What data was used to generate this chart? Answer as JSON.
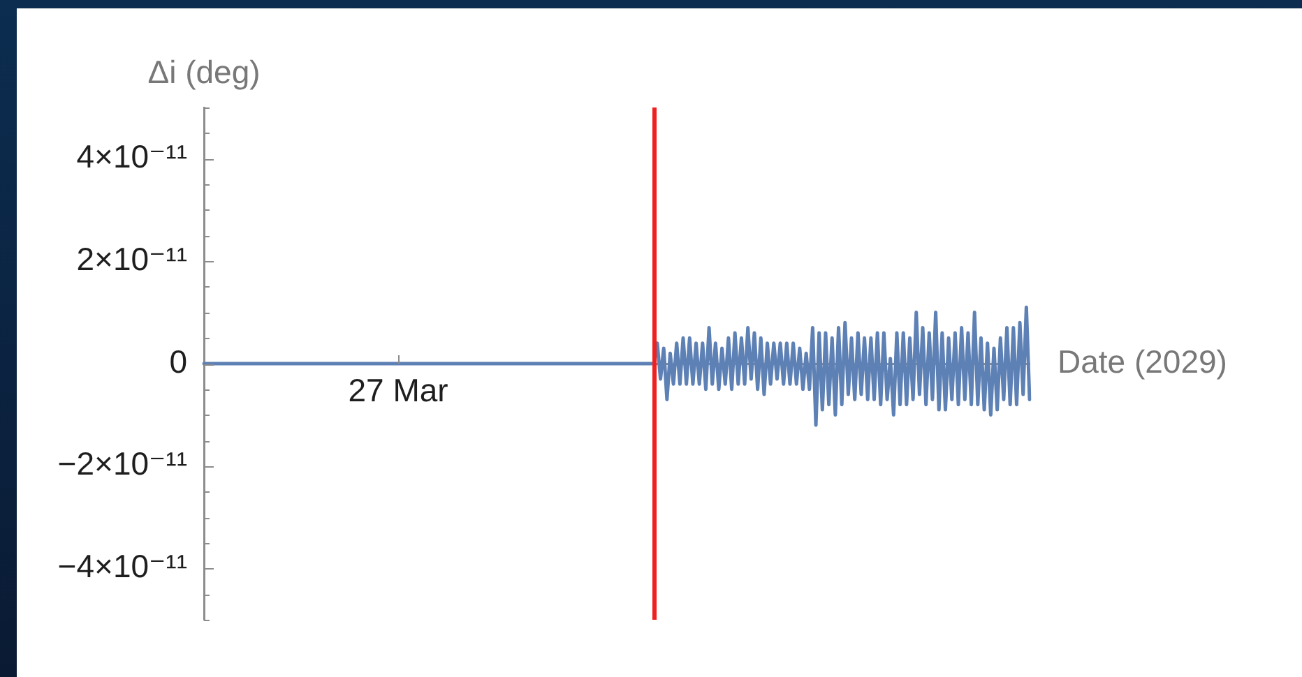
{
  "chart_data": {
    "type": "line",
    "xlabel": "Date (2029)",
    "ylabel": "Δi (deg)",
    "categories": [
      null,
      null,
      null,
      null,
      null,
      null,
      null,
      null,
      null,
      null,
      null,
      null,
      null,
      null,
      null,
      null,
      null,
      null,
      null,
      null,
      null,
      null,
      null,
      null,
      null,
      null,
      null,
      null,
      null,
      null,
      null,
      null,
      null,
      null,
      null,
      null,
      null,
      null,
      null,
      null,
      null,
      null,
      null,
      null,
      null,
      null,
      null,
      null,
      null,
      null,
      null,
      null,
      null,
      null,
      null,
      null,
      null,
      null,
      null,
      null,
      "27 Mar",
      null,
      null,
      null,
      null,
      null,
      null,
      null,
      null,
      null,
      null,
      null,
      null,
      null,
      null,
      null,
      null,
      null,
      null,
      null,
      null,
      null,
      null,
      null,
      null,
      null,
      null,
      null,
      null,
      null,
      null,
      null,
      null,
      null,
      null,
      null,
      null,
      null,
      null,
      null,
      null,
      null,
      null,
      null,
      null,
      null,
      null,
      null,
      null,
      null,
      null,
      null,
      null,
      null,
      null,
      null,
      null,
      null,
      null,
      null,
      null,
      null,
      null,
      null,
      null,
      null,
      null,
      null,
      null,
      null,
      null,
      null,
      null,
      null,
      null,
      null,
      null,
      null,
      null,
      null,
      null,
      null,
      null,
      null,
      null,
      null,
      null,
      null,
      null,
      null,
      null,
      null,
      null,
      null,
      null,
      null,
      null,
      null,
      null,
      null,
      null,
      null,
      null,
      null,
      null,
      null,
      null,
      null,
      null,
      null,
      null,
      null,
      null,
      null,
      null,
      null,
      null,
      null,
      null,
      null,
      null,
      null,
      null,
      null,
      null,
      null,
      null,
      null,
      null,
      null,
      null,
      null,
      null,
      null,
      null,
      null,
      null,
      null,
      null,
      null,
      null,
      null,
      null,
      null,
      null,
      null,
      null,
      null,
      null,
      null,
      null,
      null,
      null,
      null,
      null,
      null,
      null,
      null,
      null,
      null,
      null,
      null,
      null,
      null,
      null,
      null,
      null,
      null,
      null,
      null,
      null,
      null,
      null,
      null,
      null,
      null,
      null,
      null,
      null,
      null,
      null,
      null,
      null,
      null,
      null,
      null,
      null,
      null,
      null,
      null,
      null,
      null,
      null,
      null,
      null,
      null
    ],
    "color": "#5e81b5",
    "values": [
      0,
      0,
      0,
      0,
      0,
      0,
      0,
      0,
      0,
      0,
      0,
      0,
      0,
      0,
      0,
      0,
      0,
      0,
      0,
      0,
      0,
      0,
      0,
      0,
      0,
      0,
      0,
      0,
      0,
      0,
      0,
      0,
      0,
      0,
      0,
      0,
      0,
      0,
      0,
      0,
      0,
      0,
      0,
      0,
      0,
      0,
      0,
      0,
      0,
      0,
      0,
      0,
      0,
      0,
      0,
      0,
      0,
      0,
      0,
      0,
      0,
      0,
      0,
      0,
      0,
      0,
      0,
      0,
      0,
      0,
      0,
      0,
      0,
      0,
      0,
      0,
      0,
      0,
      0,
      0,
      0,
      0,
      0,
      0,
      0,
      0,
      0,
      0,
      0,
      0,
      0,
      0,
      0,
      0,
      0,
      0,
      0,
      0,
      0,
      0,
      0,
      0,
      0,
      0,
      0,
      0,
      0,
      0,
      0,
      0,
      0,
      0,
      0,
      0,
      0,
      0,
      0,
      0,
      0,
      0,
      0,
      0,
      0,
      0,
      0,
      0,
      0,
      0,
      0,
      0,
      0,
      0,
      0,
      0,
      0,
      0,
      0,
      0,
      0,
      0,
      4e-12,
      -3e-12,
      3e-12,
      -7e-12,
      2e-12,
      -4e-12,
      4e-12,
      -4e-12,
      5e-12,
      -4e-12,
      5e-12,
      -4e-12,
      4e-12,
      -4e-12,
      4e-12,
      -5e-12,
      7e-12,
      -4e-12,
      4e-12,
      -5e-12,
      3e-12,
      -4e-12,
      5e-12,
      -5e-12,
      6e-12,
      -4e-12,
      5e-12,
      -4e-12,
      7e-12,
      -3e-12,
      6e-12,
      -5e-12,
      5e-12,
      -6e-12,
      4e-12,
      -4e-12,
      4e-12,
      -3e-12,
      4e-12,
      -4e-12,
      4e-12,
      -4e-12,
      4e-12,
      -4e-12,
      3e-12,
      -5e-12,
      2e-12,
      -5e-12,
      7e-12,
      -1.2e-11,
      6e-12,
      -9e-12,
      6e-12,
      -8e-12,
      5e-12,
      -1e-11,
      7e-12,
      -8e-12,
      8e-12,
      -6e-12,
      5e-12,
      -7e-12,
      6e-12,
      -6e-12,
      5e-12,
      -7e-12,
      5e-12,
      -7e-12,
      6e-12,
      -8e-12,
      6e-12,
      -7e-12,
      1e-12,
      -1e-11,
      6e-12,
      -8e-12,
      6e-12,
      -8e-12,
      5e-12,
      -7e-12,
      1e-11,
      -6e-12,
      7e-12,
      -8e-12,
      6e-12,
      -7e-12,
      1e-11,
      -9e-12,
      6e-12,
      -9e-12,
      5e-12,
      -7e-12,
      6e-12,
      -8e-12,
      7e-12,
      -7e-12,
      6e-12,
      -8e-12,
      1e-11,
      -8e-12,
      5e-12,
      -9e-12,
      4e-12,
      -1e-11,
      3e-12,
      -9e-12,
      5e-12,
      -7e-12,
      7e-12,
      -8e-12,
      7e-12,
      -8e-12,
      8e-12,
      -6e-12,
      1.1e-11,
      -7e-12
    ],
    "ylim": [
      -5e-11,
      5e-11
    ],
    "yticks": [
      {
        "value": -5e-11,
        "label": null
      },
      {
        "value": -4.5e-11,
        "label": null
      },
      {
        "value": -4e-11,
        "label": "−4×10⁻¹¹"
      },
      {
        "value": -3.5e-11,
        "label": null
      },
      {
        "value": -3e-11,
        "label": null
      },
      {
        "value": -2.5e-11,
        "label": null
      },
      {
        "value": -2e-11,
        "label": "−2×10⁻¹¹"
      },
      {
        "value": -1.5e-11,
        "label": null
      },
      {
        "value": -1e-11,
        "label": null
      },
      {
        "value": -5e-12,
        "label": null
      },
      0,
      {
        "value": 5e-12,
        "label": null
      },
      {
        "value": 1e-11,
        "label": null
      },
      {
        "value": 1.5e-11,
        "label": null
      },
      {
        "value": 2e-11,
        "label": "2×10⁻¹¹"
      },
      {
        "value": 2.5e-11,
        "label": null
      },
      {
        "value": 3e-11,
        "label": null
      },
      {
        "value": 3.5e-11,
        "label": null
      },
      {
        "value": 4e-11,
        "label": "4×10⁻¹¹"
      },
      {
        "value": 4.5e-11,
        "label": null
      },
      {
        "value": 5e-11,
        "label": null
      }
    ]
  }
}
